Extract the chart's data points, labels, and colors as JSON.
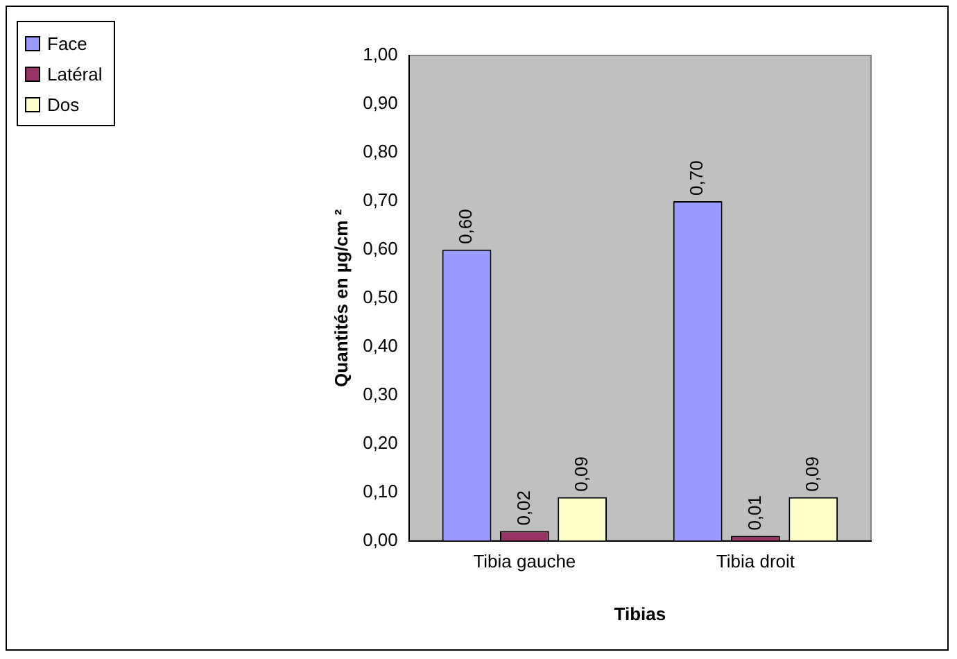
{
  "chart_data": {
    "type": "bar",
    "xlabel": "Tibias",
    "ylabel": "Quantités en µg/cm ²",
    "categories": [
      "Tibia gauche",
      "Tibia droit"
    ],
    "series": [
      {
        "name": "Face",
        "color": "#9999ff",
        "values": [
          0.6,
          0.7
        ],
        "value_labels": [
          "0,60",
          "0,70"
        ]
      },
      {
        "name": "Latéral",
        "color": "#993366",
        "values": [
          0.02,
          0.01
        ],
        "value_labels": [
          "0,02",
          "0,01"
        ]
      },
      {
        "name": "Dos",
        "color": "#ffffcc",
        "values": [
          0.09,
          0.09
        ],
        "value_labels": [
          "0,09",
          "0,09"
        ]
      }
    ],
    "ylim": [
      0,
      1
    ],
    "yticks": [
      {
        "value": 0,
        "label": "0,00"
      },
      {
        "value": 0.1,
        "label": "0,10"
      },
      {
        "value": 0.2,
        "label": "0,20"
      },
      {
        "value": 0.3,
        "label": "0,30"
      },
      {
        "value": 0.4,
        "label": "0,40"
      },
      {
        "value": 0.5,
        "label": "0,50"
      },
      {
        "value": 0.6,
        "label": "0,60"
      },
      {
        "value": 0.7,
        "label": "0,70"
      },
      {
        "value": 0.8,
        "label": "0,80"
      },
      {
        "value": 0.9,
        "label": "0,90"
      },
      {
        "value": 1,
        "label": "1,00"
      }
    ],
    "grid": false,
    "legend": "top left"
  }
}
